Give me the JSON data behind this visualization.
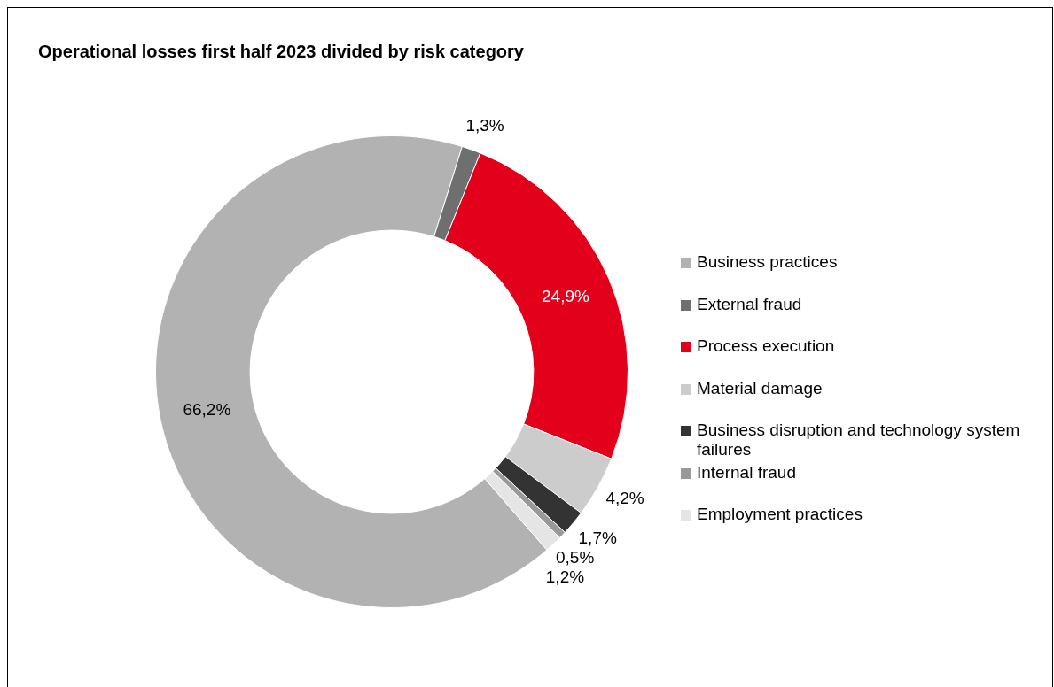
{
  "chart_data": {
    "type": "donut",
    "title": "Operational losses first half 2023 divided by risk category",
    "categories": [
      "Business practices",
      "External fraud",
      "Process execution",
      "Material damage",
      "Business disruption and technology system failures",
      "Internal fraud",
      "Employment practices"
    ],
    "values": [
      66.2,
      1.3,
      24.9,
      4.2,
      1.7,
      0.5,
      1.2
    ],
    "colors": [
      "#b2b2b2",
      "#6f6f6f",
      "#e2001a",
      "#cccccc",
      "#333333",
      "#999999",
      "#e5e5e5"
    ],
    "value_labels": [
      "66,2%",
      "1,3%",
      "24,9%",
      "4,2%",
      "1,7%",
      "0,5%",
      "1,2%"
    ],
    "legend": "right"
  }
}
